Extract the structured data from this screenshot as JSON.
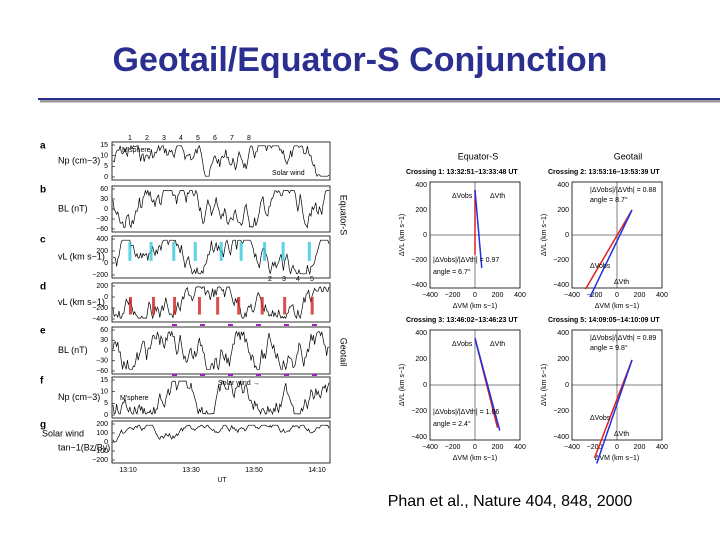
{
  "header": {
    "title": "Geotail/Equator-S Conjunction"
  },
  "figure": {
    "left": {
      "panels": [
        {
          "letter": "a",
          "label": "Np (cm−3)",
          "ticks": [
            "15",
            "10",
            "5",
            "0"
          ]
        },
        {
          "letter": "b",
          "label": "BL (nT)",
          "ticks": [
            "60",
            "30",
            "0",
            "−30",
            "−60"
          ]
        },
        {
          "letter": "c",
          "label": "vL (km s−1)",
          "ticks": [
            "400",
            "200",
            "0",
            "−200"
          ]
        },
        {
          "letter": "d",
          "label": "vL (km s−1)",
          "ticks": [
            "200",
            "0",
            "−200",
            "−400"
          ]
        },
        {
          "letter": "e",
          "label": "BL (nT)",
          "ticks": [
            "60",
            "30",
            "0",
            "−30",
            "−60"
          ]
        },
        {
          "letter": "f",
          "label": "Np (cm−3)",
          "ticks": [
            "15",
            "10",
            "5",
            "0"
          ]
        },
        {
          "letter": "g",
          "label": "tan−1(Bz/By)",
          "ticks": [
            "200",
            "100",
            "0",
            "−100",
            "−200"
          ]
        }
      ],
      "g_prefix": "Solar wind",
      "crossing_numbers_top": [
        "1",
        "2",
        "3",
        "4",
        "5",
        "6",
        "7",
        "8"
      ],
      "crossing_numbers_d": [
        "2",
        "3",
        "4",
        "5"
      ],
      "annotations": {
        "a_msphere": "M'sphere",
        "a_solar_wind": "Solar wind",
        "f_solar_wind": "Solar wind →",
        "f_msphere": "M'sphere",
        "side_equator": "Equator-S",
        "side_geotail": "Geotail"
      },
      "x_ticks": [
        "13:10",
        "13:30",
        "13:50",
        "14:10"
      ],
      "x_label": "UT"
    },
    "right": {
      "headers": [
        "Equator-S",
        "Geotail"
      ],
      "x_ticks": [
        "−400",
        "−200",
        "0",
        "200",
        "400"
      ],
      "y_ticks": [
        "400",
        "200",
        "0",
        "−200",
        "−400"
      ],
      "x_label": "ΔVM (km s−1)",
      "y_label": "ΔVL (km s−1)",
      "obs_label": "ΔVobs",
      "th_label": "ΔVth",
      "panels": [
        {
          "crossing": "Crossing 1: 13:32:51–13:33:48 UT",
          "ratio": "|ΔVobs|/|ΔVth| = 0.97",
          "angle": "angle = 6.7°"
        },
        {
          "crossing": "Crossing 2: 13:53:16–13:53:39 UT",
          "ratio": "|ΔVobs|/|ΔVth| = 0.88",
          "angle": "angle = 8.7°"
        },
        {
          "crossing": "Crossing 3: 13:46:02–13:46:23 UT",
          "ratio": "|ΔVobs|/|ΔVth| = 1.06",
          "angle": "angle = 2.4°"
        },
        {
          "crossing": "Crossing 5: 14:09:05–14:10:09 UT",
          "ratio": "|ΔVobs|/|ΔVth| = 0.89",
          "angle": "angle = 9.8°"
        }
      ]
    }
  },
  "citation": "Phan et al., Nature 404, 848, 2000"
}
